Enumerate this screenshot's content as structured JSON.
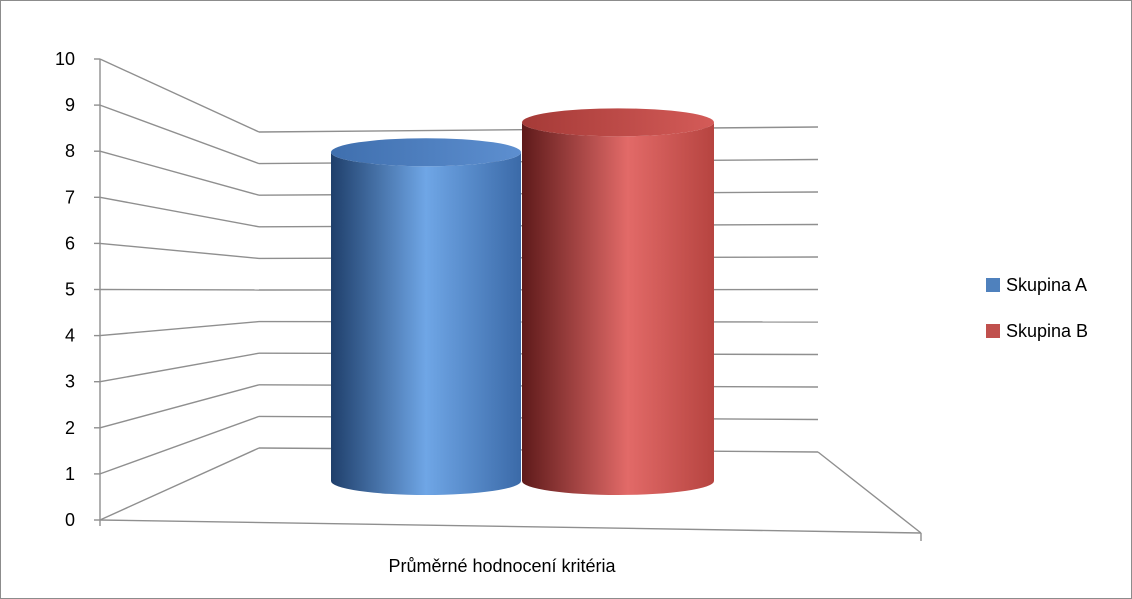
{
  "chart_data": {
    "type": "bar",
    "style": "3d-cylinder",
    "categories": [
      "Průměrné hodnocení kritéria"
    ],
    "series": [
      {
        "name": "Skupina A",
        "values": [
          7.7
        ],
        "color": "#4f81bd"
      },
      {
        "name": "Skupina B",
        "values": [
          8.4
        ],
        "color": "#c0504d"
      }
    ],
    "title": "",
    "xlabel": "",
    "ylabel": "",
    "ylim": [
      0,
      10
    ],
    "y_ticks": [
      "0",
      "1",
      "2",
      "3",
      "4",
      "5",
      "6",
      "7",
      "8",
      "9",
      "10"
    ],
    "grid": true,
    "legend_position": "right"
  }
}
